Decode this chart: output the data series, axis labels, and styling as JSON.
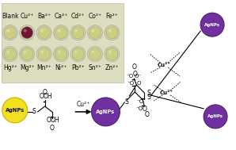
{
  "bg_color": "#ffffff",
  "top_labels_row1": [
    "Blank",
    "Cu²⁺",
    "Ba²⁺",
    "Ca²⁺",
    "Cd²⁺",
    "Co²⁺",
    "Fe²⁺"
  ],
  "top_labels_row2": [
    "Hg²⁺",
    "Mg²⁺",
    "Mn²⁺",
    "Ni²⁺",
    "Pb²⁺",
    "Sn²⁺",
    "Zn²⁺"
  ],
  "well_colors_row1": [
    "#cece82",
    "#701830",
    "#ccce80",
    "#ccce80",
    "#ccce80",
    "#ccce80",
    "#ccce80"
  ],
  "well_colors_row2": [
    "#ccce80",
    "#ccce80",
    "#ccce80",
    "#ccce80",
    "#ccce80",
    "#ccce80",
    "#ccce80"
  ],
  "photo_bg": "#dddec0",
  "agnps_yellow": "#f0e020",
  "agnps_yellow_edge": "#c8b000",
  "agnps_purple": "#7030a0",
  "agnps_purple_edge": "#502070",
  "label_fontsize": 5.5,
  "text_color": "#111111",
  "well_outer_color": "#d0d2b0",
  "well_outer_edge": "#aaa898",
  "well_inner_edge": "#9a9880",
  "photo_edge": "#bbbb90"
}
